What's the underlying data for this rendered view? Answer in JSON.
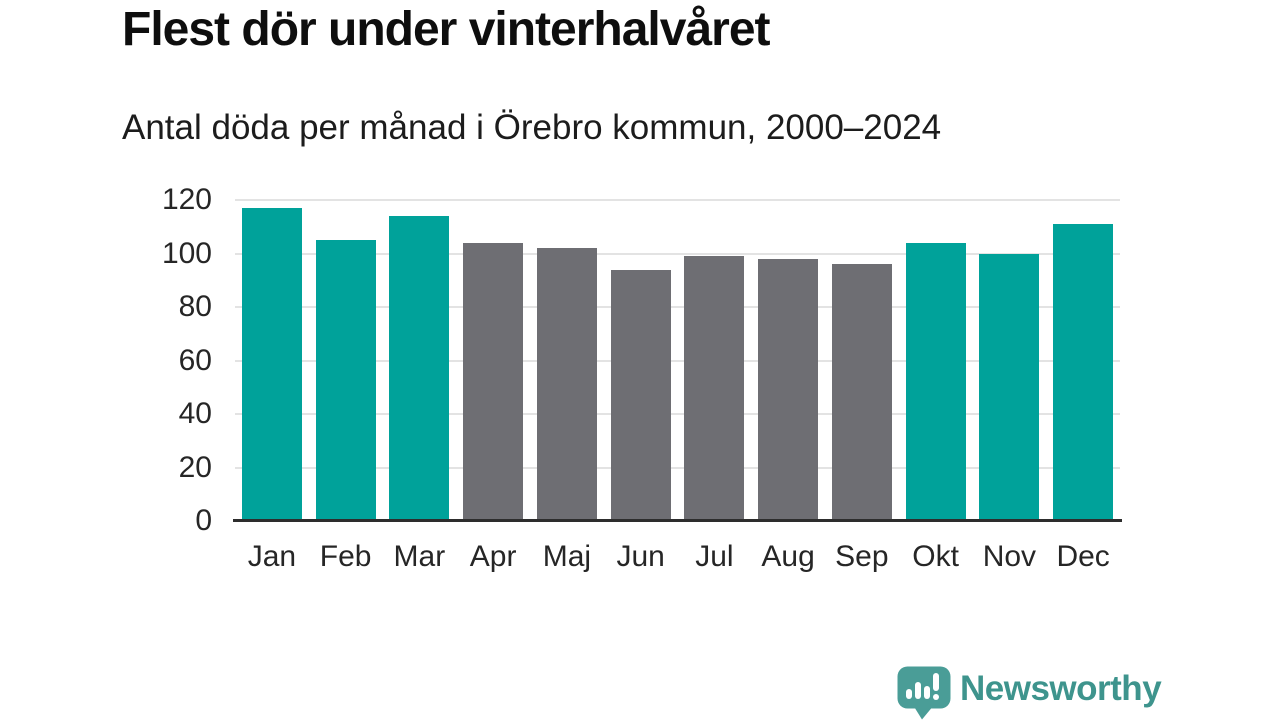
{
  "header": {
    "title": "Flest dör under vinterhalvåret",
    "subtitle": "Antal döda per månad i Örebro kommun, 2000–2024"
  },
  "chart_data": {
    "type": "bar",
    "title": "Flest dör under vinterhalvåret",
    "subtitle": "Antal döda per månad i Örebro kommun, 2000–2024",
    "categories": [
      "Jan",
      "Feb",
      "Mar",
      "Apr",
      "Maj",
      "Jun",
      "Jul",
      "Aug",
      "Sep",
      "Okt",
      "Nov",
      "Dec"
    ],
    "values": [
      117,
      105,
      114,
      104,
      102,
      94,
      99,
      98,
      96,
      104,
      100,
      111
    ],
    "bar_colors": [
      "#00a29a",
      "#00a29a",
      "#00a29a",
      "#6e6e73",
      "#6e6e73",
      "#6e6e73",
      "#6e6e73",
      "#6e6e73",
      "#6e6e73",
      "#00a29a",
      "#00a29a",
      "#00a29a"
    ],
    "highlight_color": "#00a29a",
    "base_color": "#6e6e73",
    "xlabel": "",
    "ylabel": "",
    "ylim": [
      0,
      120
    ],
    "yticks": [
      0,
      20,
      40,
      60,
      80,
      100,
      120
    ],
    "grid": true,
    "legend_position": "none",
    "gridline_color": "#e3e3e3",
    "axis_color": "#2d2d2d"
  },
  "footer": {
    "brand": "Newsworthy",
    "brand_color": "#3e948d",
    "logo_icon": "newsworthy-speech-bubble-bar-chart-icon"
  }
}
